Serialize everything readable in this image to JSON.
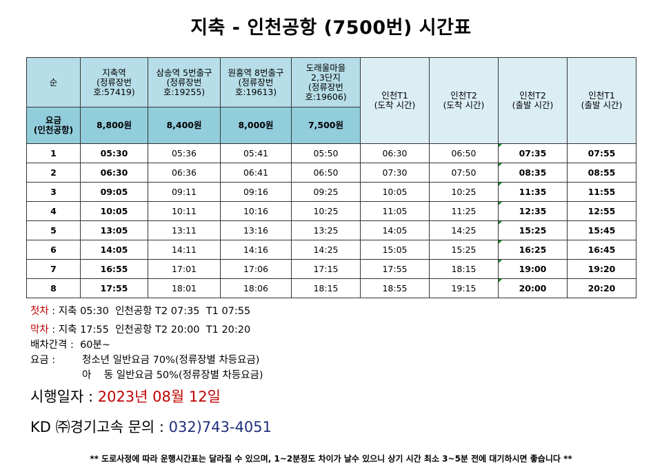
{
  "title": "지축 - 인천공항 (7500번) 시간표",
  "table": {
    "col_order": "순",
    "stops": [
      {
        "line1": "지축역",
        "line2": "(정류장번",
        "line3": "호:57419)"
      },
      {
        "line1": "삼송역 5번출구",
        "line2": "(정류장번",
        "line3": "호:19255)"
      },
      {
        "line1": "원흥역 8번출구",
        "line2": "(정류장번",
        "line3": "호:19613)"
      },
      {
        "line1": "도래울마을",
        "line2": "2,3단지",
        "line3": "(정류장번",
        "line4": "호:19606)"
      }
    ],
    "arrivals": [
      {
        "line1": "인천T1",
        "line2": "(도착 시간)"
      },
      {
        "line1": "인천T2",
        "line2": "(도착 시간)"
      },
      {
        "line1": "인천T2",
        "line2": "(출발 시간)"
      },
      {
        "line1": "인천T1",
        "line2": "(출발 시간)"
      }
    ],
    "fare_label_1": "요금",
    "fare_label_2": "(인천공항)",
    "fares": [
      "8,800원",
      "8,400원",
      "8,000원",
      "7,500원"
    ],
    "rows": [
      [
        "1",
        "05:30",
        "05:36",
        "05:41",
        "05:50",
        "06:30",
        "06:50",
        "07:35",
        "07:55"
      ],
      [
        "2",
        "06:30",
        "06:36",
        "06:41",
        "06:50",
        "07:30",
        "07:50",
        "08:35",
        "08:55"
      ],
      [
        "3",
        "09:05",
        "09:11",
        "09:16",
        "09:25",
        "10:05",
        "10:25",
        "11:35",
        "11:55"
      ],
      [
        "4",
        "10:05",
        "10:11",
        "10:16",
        "10:25",
        "11:05",
        "11:25",
        "12:35",
        "12:55"
      ],
      [
        "5",
        "13:05",
        "13:11",
        "13:16",
        "13:25",
        "14:05",
        "14:25",
        "15:25",
        "15:45"
      ],
      [
        "6",
        "14:05",
        "14:11",
        "14:16",
        "14:25",
        "15:05",
        "15:25",
        "16:25",
        "16:45"
      ],
      [
        "7",
        "16:55",
        "17:01",
        "17:06",
        "17:15",
        "17:55",
        "18:15",
        "19:00",
        "19:20"
      ],
      [
        "8",
        "17:55",
        "18:01",
        "18:06",
        "18:15",
        "18:55",
        "19:15",
        "20:00",
        "20:20"
      ]
    ]
  },
  "notes": {
    "first_label": "첫차",
    "first_text": " : 지축 05:30  인천공항 T2 07:35  T1 07:55",
    "last_label": "막차",
    "last_text": " : 지축 17:55  인천공항 T2 20:00  T1 20:20",
    "interval": "배차간격 :  60분~",
    "fare_label": "요금 :",
    "fare_youth": "청소년 일반요금 70%(정류장별 차등요금)",
    "fare_child": "아    동 일반요금 50%(정류장별 차등요금)"
  },
  "effective_label": "시행일자 : ",
  "effective_date": "2023년 08월 12일",
  "contact_label": "KD ㈜경기고속 문의 : ",
  "contact_phone": "032)743-4051",
  "disclaimer": "** 도로사정에 따라 운행시간표는 달라질 수 있으며, 1~2분정도 차이가 날수 있으니 상기 시간 최소 3~5분 전에 대기하시면 좋습니다 **",
  "colors": {
    "header_blue": "#b7dee8",
    "fare_teal": "#92cddc",
    "arrival_header": "#dbeef3",
    "accent_red": "#c00000",
    "phone_blue": "#1f2e7a",
    "cell_marker_green": "#1a8a2a"
  }
}
